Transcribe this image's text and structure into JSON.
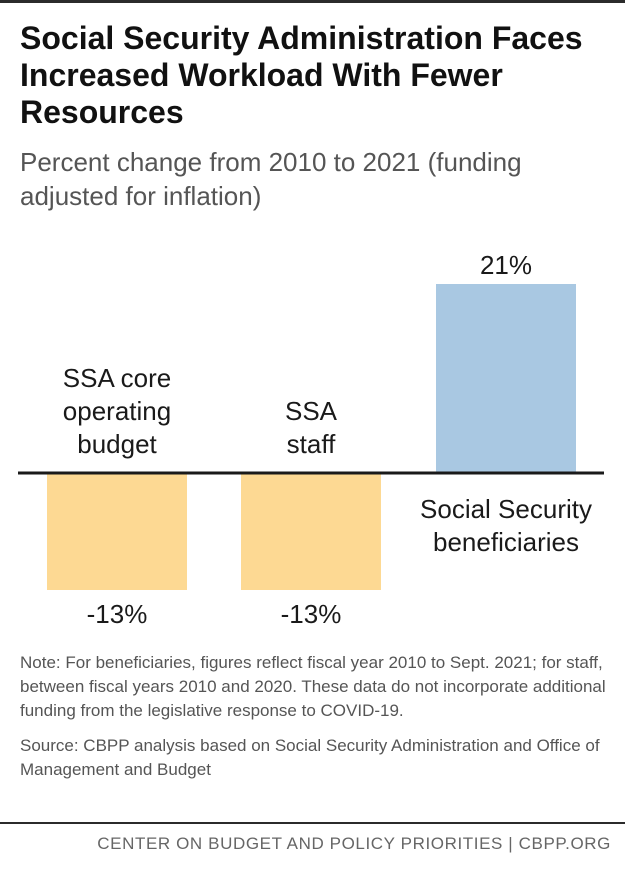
{
  "title": "Social Security Administration Faces Increased Workload With Fewer Resources",
  "subtitle": "Percent change from 2010 to 2021 (funding adjusted for inflation)",
  "chart_data": {
    "type": "bar",
    "categories": [
      [
        "SSA core",
        "operating",
        "budget"
      ],
      [
        "SSA",
        "staff"
      ],
      [
        "Social Security",
        "beneficiaries"
      ]
    ],
    "values": [
      -13,
      -13,
      21
    ],
    "value_labels": [
      "-13%",
      "-13%",
      "21%"
    ],
    "unit": "%",
    "colors": [
      "#fdd993",
      "#fdd993",
      "#a9c8e2"
    ],
    "ylim": [
      -13,
      21
    ],
    "grid": false,
    "axis_color": "#1a1a1a"
  },
  "note": "Note: For beneficiaries, figures reflect fiscal year 2010 to Sept. 2021; for staff, between fiscal years 2010 and 2020. These data do not incorporate additional funding from the legislative response to COVID-19.",
  "source": "Source: CBPP analysis based on Social Security Administration and Office of Management and Budget",
  "footer": "CENTER ON BUDGET AND POLICY PRIORITIES | CBPP.ORG"
}
